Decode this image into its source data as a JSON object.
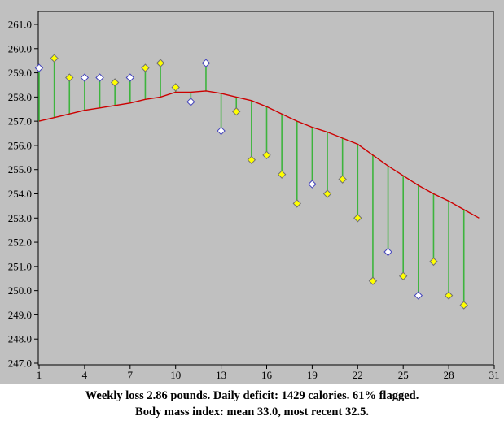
{
  "caption": {
    "line1": "Weekly loss 2.86 pounds. Daily deficit: 1429 calories. 61% flagged.",
    "line2": "Body mass index: mean 33.0, most recent 32.5."
  },
  "chart_data": {
    "type": "scatter",
    "title": "",
    "xlabel": "",
    "ylabel": "",
    "xlim": [
      1,
      31
    ],
    "ylim": [
      247.0,
      261.0
    ],
    "grid": false,
    "legend": "none",
    "x_ticks": [
      1,
      4,
      7,
      10,
      13,
      16,
      19,
      22,
      25,
      28,
      31
    ],
    "y_ticks": [
      261.0,
      260.0,
      259.0,
      258.0,
      257.0,
      256.0,
      255.0,
      254.0,
      253.0,
      252.0,
      251.0,
      250.0,
      249.0,
      248.0,
      247.0
    ],
    "colors": {
      "background": "#c0c0c0",
      "plot_border": "#000000",
      "trend_line": "#cc0000",
      "float_line": "#3db43d",
      "flagged_fill": "#ffff00",
      "flagged_stroke": "#707070",
      "unflagged_fill": "#ffffff",
      "unflagged_stroke": "#4444bb"
    },
    "points": [
      {
        "day": 1,
        "weight": 259.2,
        "flagged": false
      },
      {
        "day": 2,
        "weight": 259.6,
        "flagged": true
      },
      {
        "day": 3,
        "weight": 258.8,
        "flagged": true
      },
      {
        "day": 4,
        "weight": 258.8,
        "flagged": false
      },
      {
        "day": 5,
        "weight": 258.8,
        "flagged": false
      },
      {
        "day": 6,
        "weight": 258.6,
        "flagged": true
      },
      {
        "day": 7,
        "weight": 258.8,
        "flagged": false
      },
      {
        "day": 8,
        "weight": 259.2,
        "flagged": true
      },
      {
        "day": 9,
        "weight": 259.4,
        "flagged": true
      },
      {
        "day": 10,
        "weight": 258.4,
        "flagged": true
      },
      {
        "day": 11,
        "weight": 257.8,
        "flagged": false
      },
      {
        "day": 12,
        "weight": 259.4,
        "flagged": false
      },
      {
        "day": 13,
        "weight": 256.6,
        "flagged": false
      },
      {
        "day": 14,
        "weight": 257.4,
        "flagged": true
      },
      {
        "day": 15,
        "weight": 255.4,
        "flagged": true
      },
      {
        "day": 16,
        "weight": 255.6,
        "flagged": true
      },
      {
        "day": 17,
        "weight": 254.8,
        "flagged": true
      },
      {
        "day": 18,
        "weight": 253.6,
        "flagged": true
      },
      {
        "day": 19,
        "weight": 254.4,
        "flagged": false
      },
      {
        "day": 20,
        "weight": 254.0,
        "flagged": true
      },
      {
        "day": 21,
        "weight": 254.6,
        "flagged": true
      },
      {
        "day": 22,
        "weight": 253.0,
        "flagged": true
      },
      {
        "day": 23,
        "weight": 250.4,
        "flagged": true
      },
      {
        "day": 24,
        "weight": 251.6,
        "flagged": false
      },
      {
        "day": 25,
        "weight": 250.6,
        "flagged": true
      },
      {
        "day": 26,
        "weight": 249.8,
        "flagged": false
      },
      {
        "day": 27,
        "weight": 251.2,
        "flagged": true
      },
      {
        "day": 28,
        "weight": 249.8,
        "flagged": true
      },
      {
        "day": 29,
        "weight": 249.4,
        "flagged": true
      }
    ],
    "trend": [
      {
        "day": 1,
        "value": 257.0
      },
      {
        "day": 2,
        "value": 257.15
      },
      {
        "day": 3,
        "value": 257.3
      },
      {
        "day": 4,
        "value": 257.45
      },
      {
        "day": 5,
        "value": 257.55
      },
      {
        "day": 6,
        "value": 257.65
      },
      {
        "day": 7,
        "value": 257.75
      },
      {
        "day": 8,
        "value": 257.9
      },
      {
        "day": 9,
        "value": 258.0
      },
      {
        "day": 10,
        "value": 258.2
      },
      {
        "day": 11,
        "value": 258.2
      },
      {
        "day": 12,
        "value": 258.25
      },
      {
        "day": 13,
        "value": 258.15
      },
      {
        "day": 14,
        "value": 258.0
      },
      {
        "day": 15,
        "value": 257.85
      },
      {
        "day": 16,
        "value": 257.6
      },
      {
        "day": 17,
        "value": 257.3
      },
      {
        "day": 18,
        "value": 257.0
      },
      {
        "day": 19,
        "value": 256.75
      },
      {
        "day": 20,
        "value": 256.55
      },
      {
        "day": 21,
        "value": 256.3
      },
      {
        "day": 22,
        "value": 256.05
      },
      {
        "day": 23,
        "value": 255.6
      },
      {
        "day": 24,
        "value": 255.15
      },
      {
        "day": 25,
        "value": 254.75
      },
      {
        "day": 26,
        "value": 254.35
      },
      {
        "day": 27,
        "value": 254.0
      },
      {
        "day": 28,
        "value": 253.7
      },
      {
        "day": 29,
        "value": 253.35
      },
      {
        "day": 30,
        "value": 253.0
      }
    ]
  }
}
